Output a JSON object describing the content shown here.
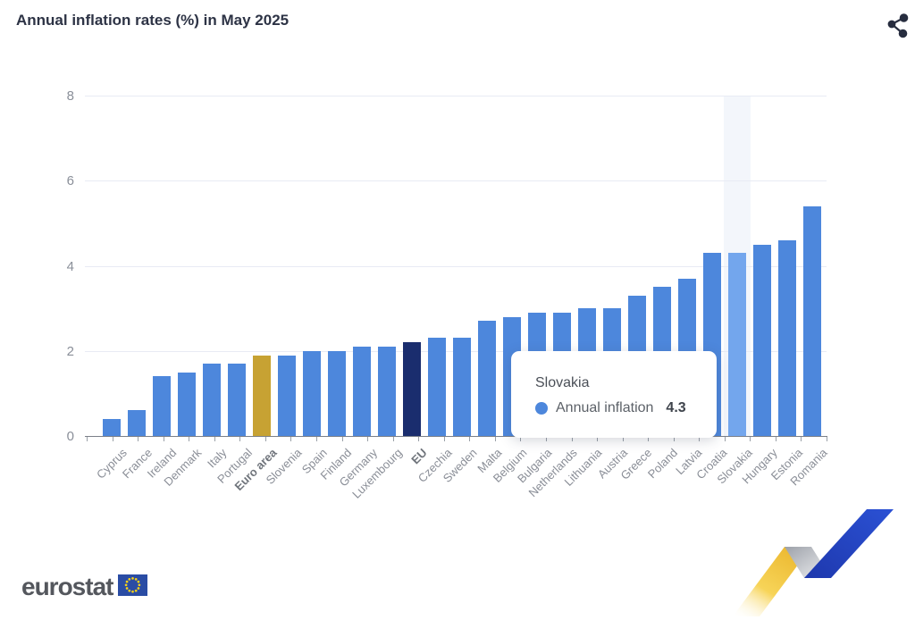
{
  "header": {
    "title": "Annual inflation rates (%) in May 2025"
  },
  "toolbar": {
    "share_icon": "share-icon"
  },
  "chart_data": {
    "type": "bar",
    "title": "Annual inflation rates (%) in May 2025",
    "xlabel": "",
    "ylabel": "",
    "ylim": [
      0,
      8
    ],
    "yticks": [
      0,
      2,
      4,
      6,
      8
    ],
    "grid": true,
    "legend_position": "tooltip-only",
    "series_name": "Annual inflation",
    "categories": [
      "Cyprus",
      "France",
      "Ireland",
      "Denmark",
      "Italy",
      "Portugal",
      "Euro area",
      "Slovenia",
      "Spain",
      "Finland",
      "Germany",
      "Luxembourg",
      "EU",
      "Czechia",
      "Sweden",
      "Malta",
      "Belgium",
      "Bulgaria",
      "Netherlands",
      "Lithuania",
      "Austria",
      "Greece",
      "Poland",
      "Latvia",
      "Croatia",
      "Slovakia",
      "Hungary",
      "Estonia",
      "Romania"
    ],
    "values": [
      0.4,
      0.6,
      1.4,
      1.5,
      1.7,
      1.7,
      1.9,
      1.9,
      2.0,
      2.0,
      2.1,
      2.1,
      2.2,
      2.3,
      2.3,
      2.7,
      2.8,
      2.9,
      2.9,
      3.0,
      3.0,
      3.3,
      3.5,
      3.7,
      4.3,
      4.3,
      4.5,
      4.6,
      5.4
    ],
    "bold_categories": [
      "Euro area",
      "EU"
    ],
    "highlighted_category": "Slovakia",
    "colors": {
      "bar": "#4d87dc",
      "euro_area_bar": "#c7a233",
      "eu_bar": "#1a2d6e",
      "highlighted_bar": "#73a6ed",
      "highlight_band": "#f3f6fb",
      "gridline": "#e8ebf4",
      "axis_line": "#7b8089",
      "axis_label": "#8a8f99"
    }
  },
  "tooltip": {
    "title": "Slovakia",
    "series_label": "Annual inflation",
    "value": "4.3",
    "marker_color": "#4d87dc"
  },
  "footer": {
    "logo_text": "eurostat"
  }
}
